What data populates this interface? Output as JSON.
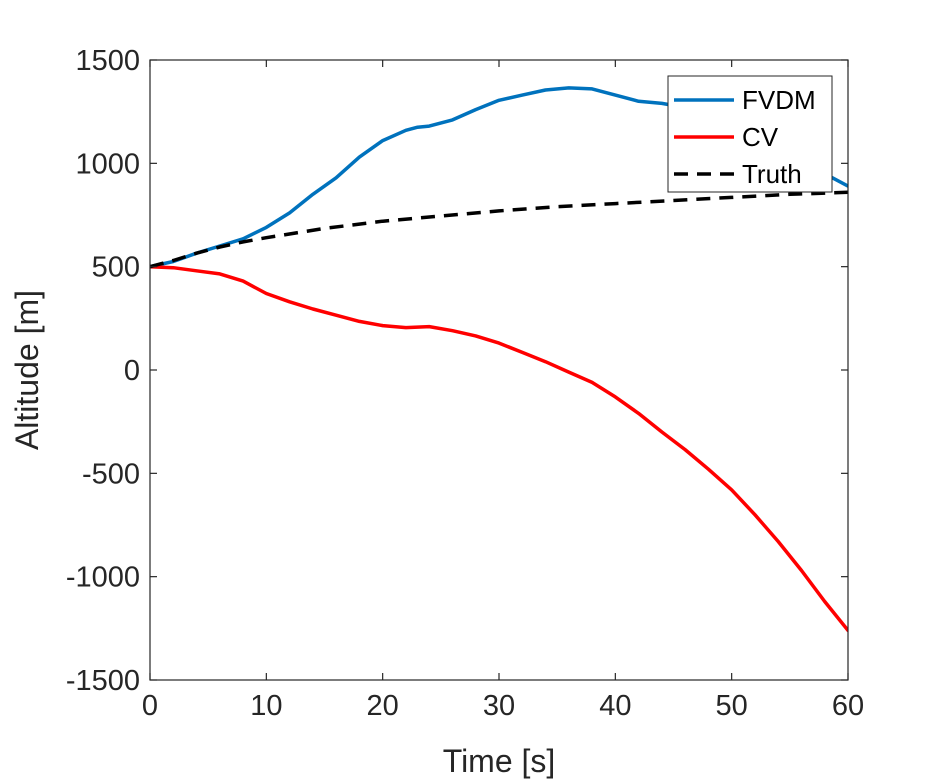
{
  "chart_data": {
    "type": "line",
    "title": "",
    "xlabel": "Time [s]",
    "ylabel": "Altitude [m]",
    "xlim": [
      0,
      60
    ],
    "ylim": [
      -1500,
      1500
    ],
    "xticks": [
      0,
      10,
      20,
      30,
      40,
      50,
      60
    ],
    "yticks": [
      -1500,
      -1000,
      -500,
      0,
      500,
      1000,
      1500
    ],
    "grid": false,
    "legend_position": "top-right",
    "series": [
      {
        "name": "FVDM",
        "color": "#0072BD",
        "style": "solid",
        "x": [
          0,
          2,
          4,
          6,
          8,
          10,
          12,
          14,
          16,
          18,
          20,
          22,
          23,
          24,
          26,
          28,
          30,
          32,
          34,
          36,
          38,
          40,
          42,
          44,
          46,
          48,
          50,
          52,
          54,
          56,
          58,
          60
        ],
        "y": [
          500,
          525,
          565,
          600,
          635,
          690,
          760,
          850,
          930,
          1030,
          1110,
          1160,
          1175,
          1180,
          1210,
          1260,
          1305,
          1330,
          1355,
          1365,
          1360,
          1330,
          1300,
          1290,
          1270,
          1240,
          1200,
          1150,
          1080,
          1000,
          950,
          890
        ]
      },
      {
        "name": "CV",
        "color": "#FF0000",
        "style": "solid",
        "x": [
          0,
          2,
          4,
          6,
          8,
          10,
          12,
          14,
          16,
          18,
          20,
          22,
          24,
          26,
          28,
          30,
          32,
          34,
          36,
          38,
          40,
          42,
          44,
          46,
          48,
          50,
          52,
          54,
          56,
          58,
          60
        ],
        "y": [
          500,
          495,
          480,
          465,
          430,
          370,
          330,
          295,
          265,
          235,
          215,
          205,
          210,
          190,
          165,
          130,
          85,
          40,
          -10,
          -60,
          -130,
          -210,
          -300,
          -385,
          -480,
          -580,
          -700,
          -830,
          -970,
          -1120,
          -1260
        ]
      },
      {
        "name": "Truth",
        "color": "#000000",
        "style": "dashed",
        "x": [
          0,
          2,
          4,
          6,
          8,
          10,
          15,
          20,
          25,
          30,
          35,
          40,
          45,
          50,
          55,
          60
        ],
        "y": [
          500,
          530,
          565,
          595,
          620,
          640,
          685,
          720,
          745,
          770,
          790,
          805,
          820,
          835,
          850,
          860
        ]
      }
    ]
  }
}
